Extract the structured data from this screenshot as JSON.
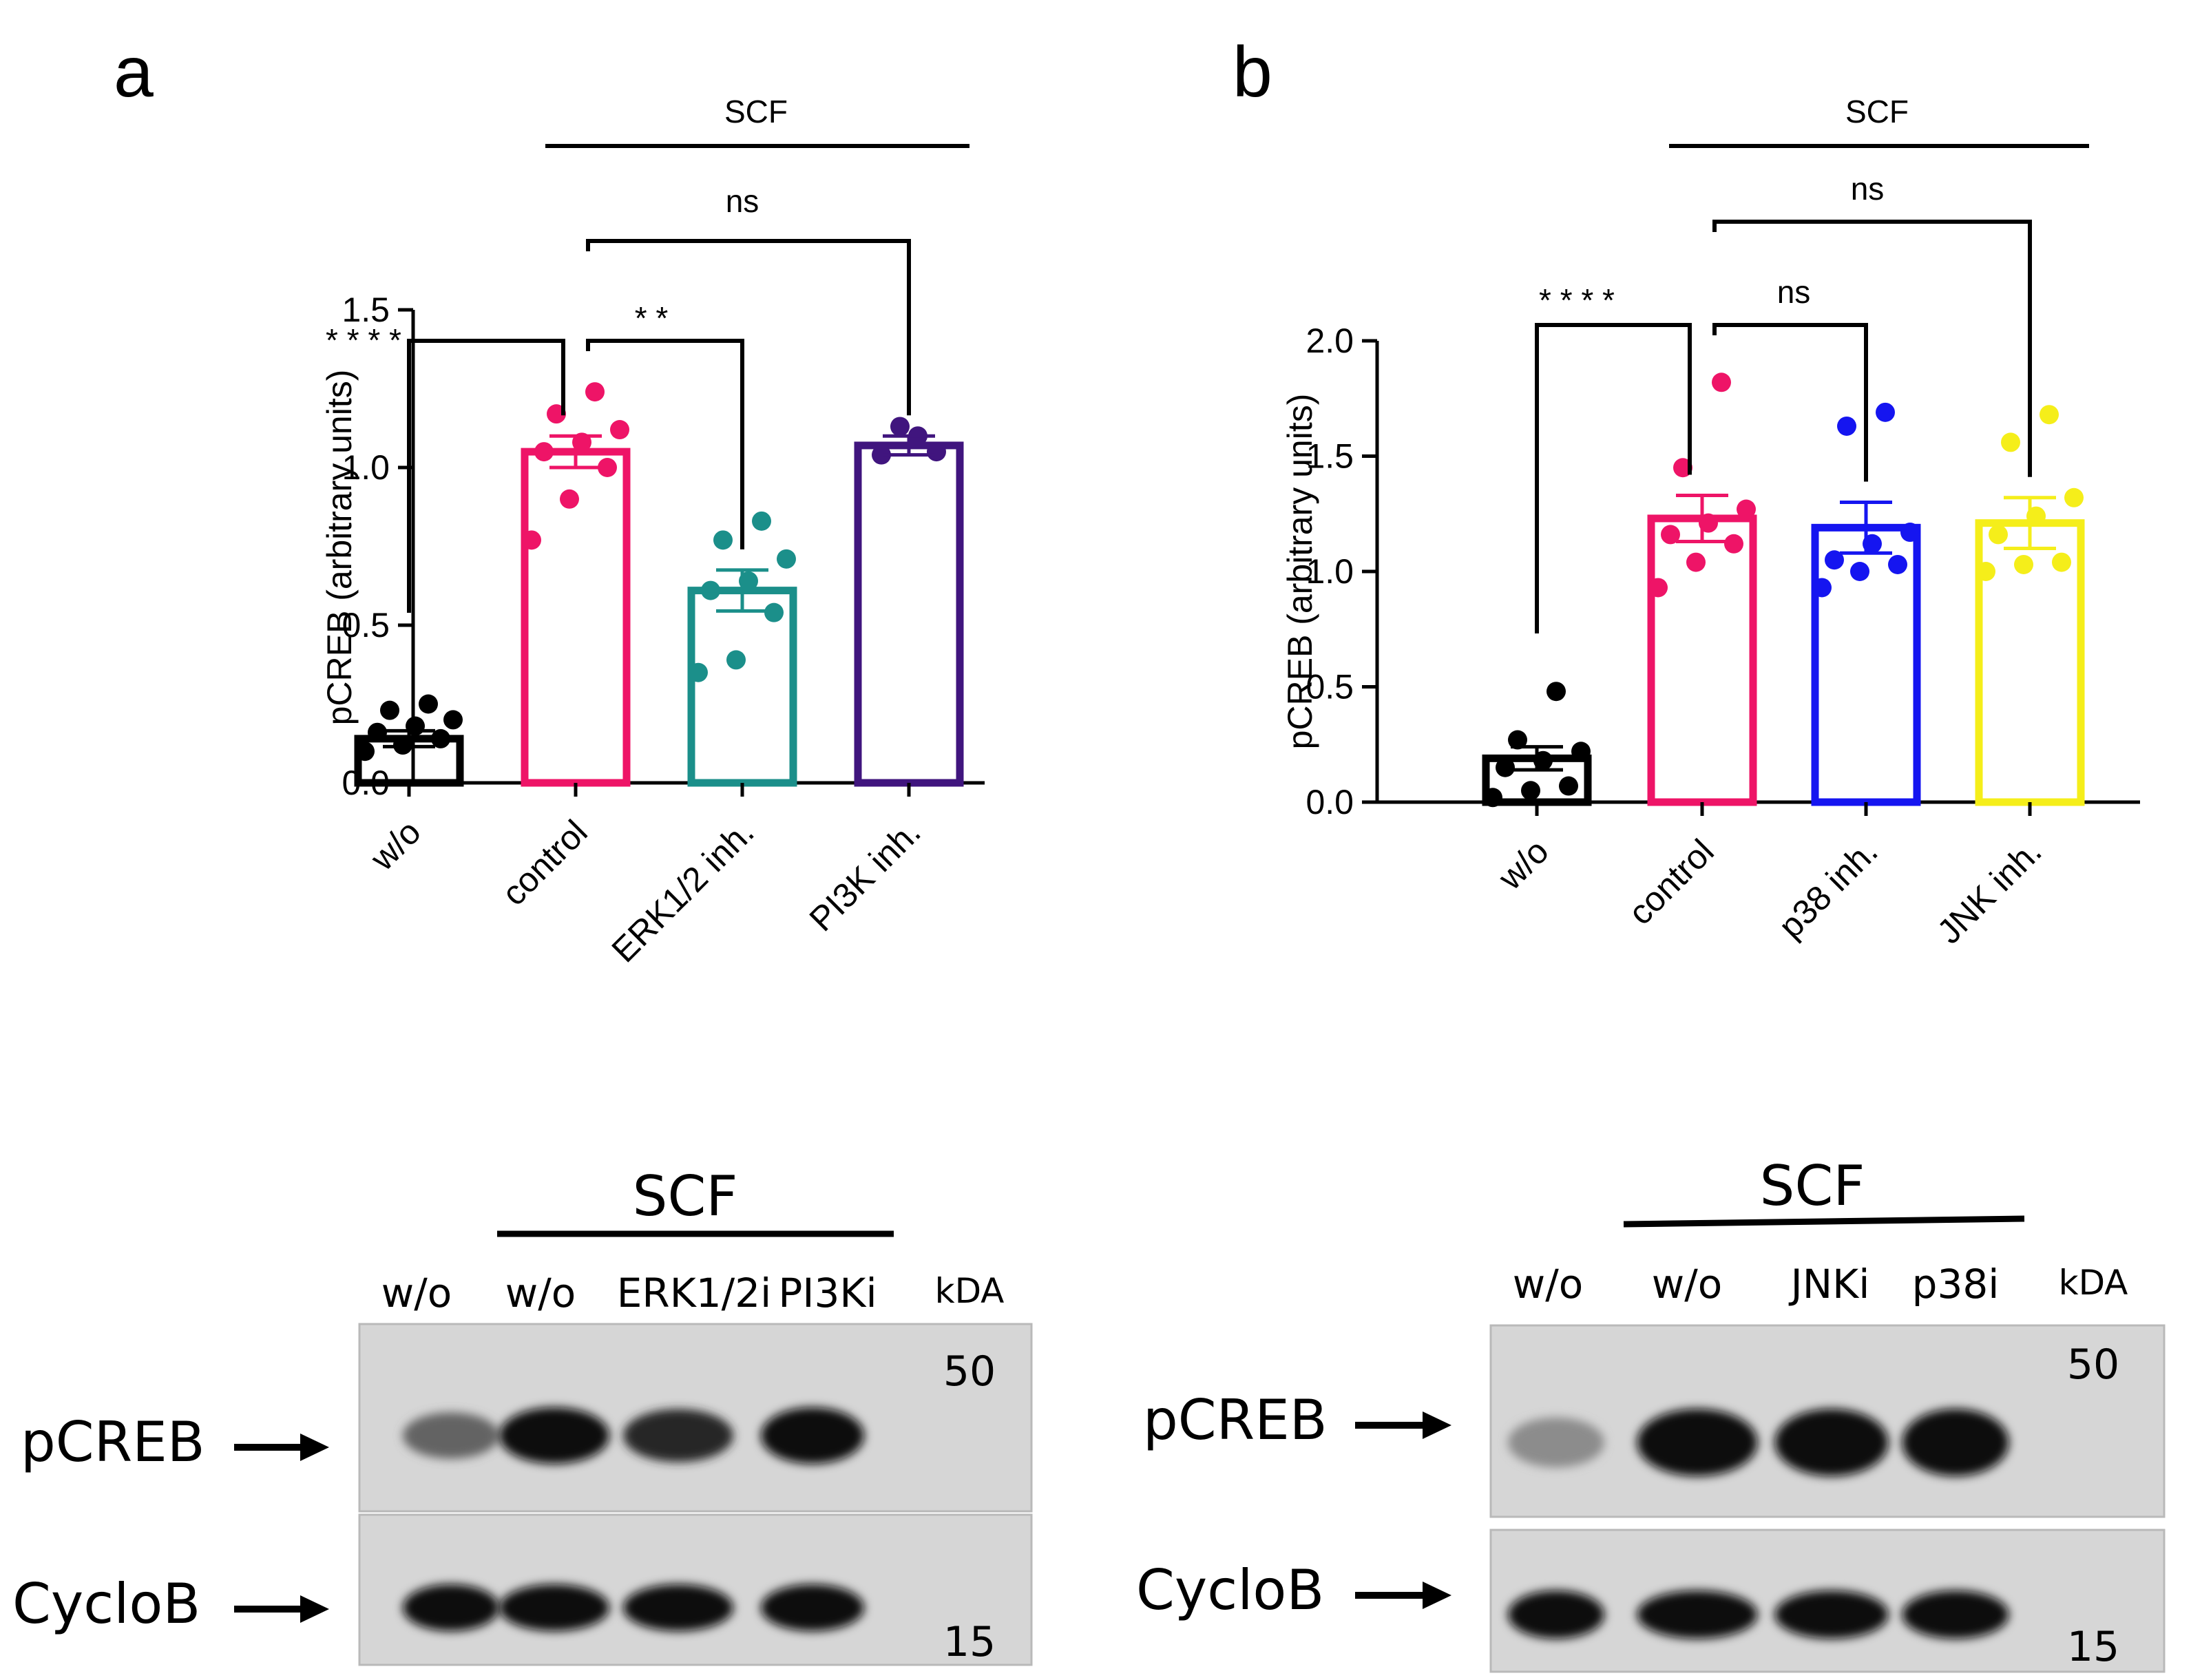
{
  "chart_data": [
    {
      "panel_label": "a",
      "type": "bar",
      "ylabel": "pCREB (arbitrary units)",
      "ylim": [
        0,
        1.5
      ],
      "yticks": [
        "0.0",
        "0.5",
        "1.0",
        "1.5"
      ],
      "categories": [
        "w/o",
        "control",
        "ERK1/2 inh.",
        "PI3K inh."
      ],
      "values": [
        0.14,
        1.05,
        0.61,
        1.07
      ],
      "errors": [
        0.025,
        0.05,
        0.065,
        0.03
      ],
      "colors": [
        "#000000",
        "#ee1467",
        "#1b8f8a",
        "#40157e"
      ],
      "points": [
        [
          0.1,
          0.12,
          0.14,
          0.16,
          0.18,
          0.2,
          0.23,
          0.25
        ],
        [
          0.77,
          0.9,
          1.0,
          1.05,
          1.08,
          1.12,
          1.17,
          1.24
        ],
        [
          0.35,
          0.39,
          0.54,
          0.61,
          0.64,
          0.71,
          0.77,
          0.83
        ],
        [
          1.04,
          1.05,
          1.1,
          1.13
        ]
      ],
      "bracket_label": "SCF",
      "significance": [
        {
          "from": 0,
          "to": 1,
          "label": "* * * *"
        },
        {
          "from": 1,
          "to": 2,
          "label": "* *"
        },
        {
          "from": 1,
          "to": 3,
          "label": "ns"
        }
      ]
    },
    {
      "panel_label": "b",
      "type": "bar",
      "ylabel": "pCREB (arbitrary units)",
      "ylim": [
        0,
        2.0
      ],
      "yticks": [
        "0.0",
        "0.5",
        "1.0",
        "1.5",
        "2.0"
      ],
      "categories": [
        "w/o",
        "control",
        "p38 inh.",
        "JNK inh."
      ],
      "values": [
        0.19,
        1.23,
        1.19,
        1.21
      ],
      "errors": [
        0.05,
        0.1,
        0.11,
        0.11
      ],
      "colors": [
        "#000000",
        "#ee1467",
        "#1515f0",
        "#f5ee1a"
      ],
      "points": [
        [
          0.02,
          0.05,
          0.07,
          0.15,
          0.18,
          0.22,
          0.27,
          0.48
        ],
        [
          0.93,
          1.04,
          1.12,
          1.16,
          1.21,
          1.27,
          1.45,
          1.82
        ],
        [
          0.93,
          1.0,
          1.03,
          1.05,
          1.12,
          1.17,
          1.63,
          1.69
        ],
        [
          1.0,
          1.03,
          1.04,
          1.16,
          1.24,
          1.32,
          1.56,
          1.68
        ]
      ],
      "bracket_label": "SCF",
      "significance": [
        {
          "from": 0,
          "to": 1,
          "label": "* * * *"
        },
        {
          "from": 1,
          "to": 2,
          "label": "ns"
        },
        {
          "from": 1,
          "to": 3,
          "label": "ns"
        }
      ]
    }
  ],
  "blots": [
    {
      "scf_label": "SCF",
      "lane_labels": [
        "w/o",
        "w/o",
        "ERK1/2i",
        "PI3Ki"
      ],
      "kda_label": "kDA",
      "rows": [
        {
          "name": "pCREB",
          "marker": "50",
          "intensity": [
            0.55,
            1.0,
            0.85,
            1.0
          ]
        },
        {
          "name": "CycloB",
          "marker": "15",
          "intensity": [
            1.0,
            1.0,
            1.0,
            1.0
          ]
        }
      ]
    },
    {
      "scf_label": "SCF",
      "lane_labels": [
        "w/o",
        "w/o",
        "JNKi",
        "p38i"
      ],
      "kda_label": "kDA",
      "rows": [
        {
          "name": "pCREB",
          "marker": "50",
          "intensity": [
            0.35,
            1.0,
            1.0,
            1.0
          ]
        },
        {
          "name": "CycloB",
          "marker": "15",
          "intensity": [
            1.0,
            1.0,
            1.0,
            1.0
          ]
        }
      ]
    }
  ]
}
